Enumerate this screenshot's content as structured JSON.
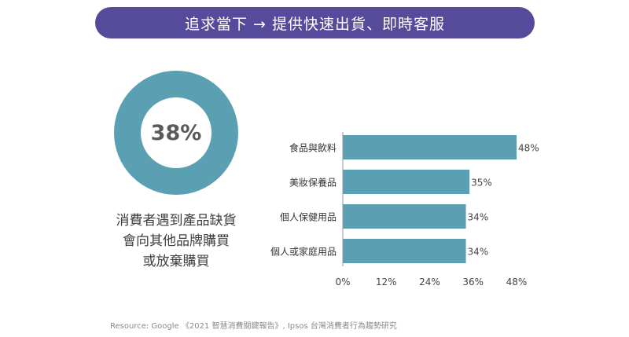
{
  "banner": {
    "title": "追求當下 → 提供快速出貨、即時客服"
  },
  "donut": {
    "value_label": "38%",
    "value": 38,
    "colors": {
      "value": "#564a9a",
      "rest": "#5b9fb2"
    }
  },
  "caption": {
    "lines": [
      "消費者遇到產品缺貨",
      "會向其他品牌購買",
      "或放棄購買"
    ]
  },
  "chart_data": {
    "type": "bar",
    "orientation": "horizontal",
    "categories": [
      "食品與飲料",
      "美妝保養品",
      "個人保健用品",
      "個人或家庭用品"
    ],
    "values": [
      48,
      35,
      34,
      34
    ],
    "value_labels": [
      "48%",
      "35%",
      "34%",
      "34%"
    ],
    "xlim": [
      0,
      48
    ],
    "xticks": [
      "0%",
      "12%",
      "24%",
      "36%",
      "48%"
    ],
    "xtick_values": [
      0,
      12,
      24,
      36,
      48
    ],
    "grid": false,
    "bar_color": "#5b9fb2"
  },
  "source": {
    "text": "Resource: Google 《2021 智慧消費關鍵報告》, Ipsos 台灣消費者行為趨勢研究"
  }
}
